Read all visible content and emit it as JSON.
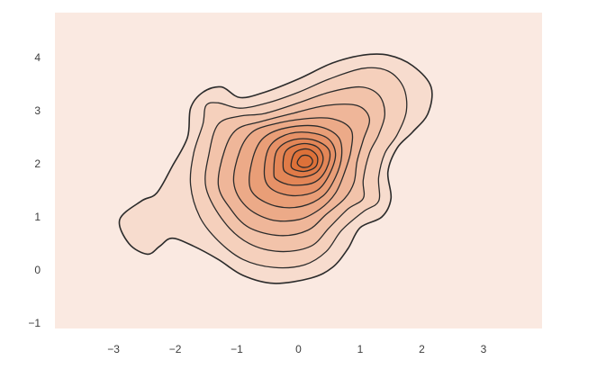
{
  "chart_data": {
    "type": "kde_contour",
    "title": "",
    "xlabel": "",
    "ylabel": "",
    "xlim": [
      -3.95,
      3.95
    ],
    "ylim": [
      -1.1,
      4.85
    ],
    "xticks": [
      -3,
      -2,
      -1,
      0,
      1,
      2,
      3
    ],
    "xtick_labels": [
      "−3",
      "−2",
      "−1",
      "0",
      "1",
      "2",
      "3"
    ],
    "yticks": [
      -1,
      0,
      1,
      2,
      3,
      4
    ],
    "ytick_labels": [
      "−1",
      "0",
      "1",
      "2",
      "3",
      "4"
    ],
    "grid": false,
    "background_color": "#fae9e1",
    "line_color": "#2b2b2b",
    "fill_colors": [
      "#f7dcce",
      "#f5d0bc",
      "#f2c3aa",
      "#efb699",
      "#ecaa88",
      "#e99e77",
      "#e69167",
      "#e38657",
      "#e07b48",
      "#dd7139"
    ],
    "peak": [
      0.1,
      2.05
    ],
    "levels": [
      {
        "points": [
          [
            -2.55,
            1.3
          ],
          [
            -2.3,
            1.45
          ],
          [
            -2.05,
            1.95
          ],
          [
            -1.8,
            2.5
          ],
          [
            -1.75,
            3.05
          ],
          [
            -1.55,
            3.35
          ],
          [
            -1.25,
            3.45
          ],
          [
            -0.95,
            3.25
          ],
          [
            -0.55,
            3.35
          ],
          [
            0,
            3.6
          ],
          [
            0.55,
            3.9
          ],
          [
            1.05,
            4.05
          ],
          [
            1.45,
            4.05
          ],
          [
            1.85,
            3.85
          ],
          [
            2.15,
            3.45
          ],
          [
            2.1,
            2.95
          ],
          [
            1.85,
            2.6
          ],
          [
            1.6,
            2.3
          ],
          [
            1.45,
            1.85
          ],
          [
            1.5,
            1.35
          ],
          [
            1.35,
            1.0
          ],
          [
            1.0,
            0.8
          ],
          [
            0.8,
            0.4
          ],
          [
            0.55,
            0.05
          ],
          [
            0.2,
            -0.15
          ],
          [
            -0.4,
            -0.25
          ],
          [
            -0.9,
            -0.1
          ],
          [
            -1.3,
            0.2
          ],
          [
            -1.7,
            0.45
          ],
          [
            -2.05,
            0.6
          ],
          [
            -2.25,
            0.45
          ],
          [
            -2.45,
            0.3
          ],
          [
            -2.75,
            0.5
          ],
          [
            -2.9,
            0.95
          ]
        ]
      },
      {
        "points": [
          [
            -1.75,
            1.6
          ],
          [
            -1.7,
            2.2
          ],
          [
            -1.55,
            2.75
          ],
          [
            -1.5,
            3.1
          ],
          [
            -1.3,
            3.15
          ],
          [
            -0.95,
            3.05
          ],
          [
            -0.5,
            3.15
          ],
          [
            0,
            3.35
          ],
          [
            0.5,
            3.6
          ],
          [
            1.05,
            3.8
          ],
          [
            1.45,
            3.75
          ],
          [
            1.7,
            3.45
          ],
          [
            1.75,
            3.0
          ],
          [
            1.6,
            2.55
          ],
          [
            1.4,
            2.2
          ],
          [
            1.3,
            1.75
          ],
          [
            1.3,
            1.3
          ],
          [
            1.05,
            1.1
          ],
          [
            0.7,
            0.75
          ],
          [
            0.45,
            0.35
          ],
          [
            0.1,
            0.1
          ],
          [
            -0.4,
            0.05
          ],
          [
            -0.9,
            0.2
          ],
          [
            -1.3,
            0.55
          ],
          [
            -1.6,
            1.0
          ]
        ]
      },
      {
        "points": [
          [
            -1.5,
            1.55
          ],
          [
            -1.45,
            2.2
          ],
          [
            -1.3,
            2.75
          ],
          [
            -0.95,
            2.9
          ],
          [
            -0.55,
            2.95
          ],
          [
            0,
            3.15
          ],
          [
            0.5,
            3.35
          ],
          [
            1.0,
            3.45
          ],
          [
            1.3,
            3.3
          ],
          [
            1.4,
            2.95
          ],
          [
            1.3,
            2.55
          ],
          [
            1.15,
            2.2
          ],
          [
            1.05,
            1.7
          ],
          [
            1.05,
            1.35
          ],
          [
            0.8,
            1.15
          ],
          [
            0.5,
            0.8
          ],
          [
            0.2,
            0.45
          ],
          [
            -0.3,
            0.35
          ],
          [
            -0.8,
            0.5
          ],
          [
            -1.2,
            0.9
          ]
        ]
      },
      {
        "points": [
          [
            -1.3,
            1.6
          ],
          [
            -1.2,
            2.25
          ],
          [
            -1.0,
            2.65
          ],
          [
            -0.6,
            2.8
          ],
          [
            -0.1,
            2.95
          ],
          [
            0.45,
            3.1
          ],
          [
            0.95,
            3.1
          ],
          [
            1.15,
            2.85
          ],
          [
            1.05,
            2.45
          ],
          [
            0.95,
            2.05
          ],
          [
            0.9,
            1.65
          ],
          [
            0.75,
            1.35
          ],
          [
            0.45,
            1.05
          ],
          [
            0.15,
            0.75
          ],
          [
            -0.3,
            0.65
          ],
          [
            -0.8,
            0.8
          ],
          [
            -1.1,
            1.15
          ]
        ]
      },
      {
        "points": [
          [
            -1.05,
            1.65
          ],
          [
            -0.95,
            2.25
          ],
          [
            -0.75,
            2.6
          ],
          [
            -0.4,
            2.75
          ],
          [
            0.1,
            2.85
          ],
          [
            0.55,
            2.85
          ],
          [
            0.85,
            2.65
          ],
          [
            0.85,
            2.25
          ],
          [
            0.75,
            1.85
          ],
          [
            0.6,
            1.45
          ],
          [
            0.35,
            1.15
          ],
          [
            0.0,
            0.95
          ],
          [
            -0.45,
            0.95
          ],
          [
            -0.85,
            1.2
          ]
        ]
      },
      {
        "points": [
          [
            -0.8,
            1.7
          ],
          [
            -0.7,
            2.25
          ],
          [
            -0.5,
            2.55
          ],
          [
            -0.1,
            2.7
          ],
          [
            0.35,
            2.7
          ],
          [
            0.65,
            2.5
          ],
          [
            0.7,
            2.15
          ],
          [
            0.6,
            1.75
          ],
          [
            0.4,
            1.4
          ],
          [
            0.05,
            1.2
          ],
          [
            -0.35,
            1.2
          ],
          [
            -0.7,
            1.4
          ]
        ]
      },
      {
        "points": [
          [
            -0.55,
            1.75
          ],
          [
            -0.5,
            2.25
          ],
          [
            -0.3,
            2.5
          ],
          [
            0.05,
            2.6
          ],
          [
            0.45,
            2.5
          ],
          [
            0.6,
            2.2
          ],
          [
            0.5,
            1.8
          ],
          [
            0.3,
            1.5
          ],
          [
            -0.05,
            1.4
          ],
          [
            -0.4,
            1.5
          ]
        ]
      },
      {
        "points": [
          [
            -0.4,
            1.85
          ],
          [
            -0.35,
            2.25
          ],
          [
            -0.1,
            2.45
          ],
          [
            0.25,
            2.45
          ],
          [
            0.5,
            2.25
          ],
          [
            0.45,
            1.9
          ],
          [
            0.25,
            1.65
          ],
          [
            -0.1,
            1.6
          ],
          [
            -0.35,
            1.7
          ]
        ]
      },
      {
        "points": [
          [
            -0.25,
            1.95
          ],
          [
            -0.2,
            2.25
          ],
          [
            0.05,
            2.38
          ],
          [
            0.3,
            2.32
          ],
          [
            0.4,
            2.1
          ],
          [
            0.3,
            1.85
          ],
          [
            0.05,
            1.75
          ],
          [
            -0.18,
            1.82
          ]
        ]
      },
      {
        "points": [
          [
            -0.12,
            2.0
          ],
          [
            -0.05,
            2.22
          ],
          [
            0.15,
            2.28
          ],
          [
            0.3,
            2.15
          ],
          [
            0.28,
            1.95
          ],
          [
            0.1,
            1.86
          ],
          [
            -0.08,
            1.9
          ]
        ]
      },
      {
        "points": [
          [
            -0.02,
            2.02
          ],
          [
            0.05,
            2.15
          ],
          [
            0.17,
            2.15
          ],
          [
            0.23,
            2.05
          ],
          [
            0.17,
            1.95
          ],
          [
            0.05,
            1.94
          ]
        ]
      }
    ]
  }
}
